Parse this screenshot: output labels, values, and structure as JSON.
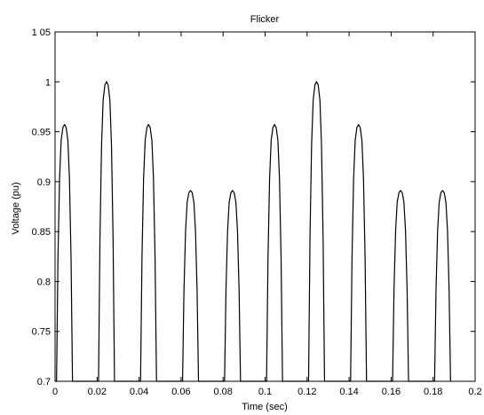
{
  "chart_data": {
    "type": "line",
    "title": "Flicker",
    "xlabel": "Time (sec)",
    "ylabel": "Voltage (pu)",
    "xlim": [
      0,
      0.2
    ],
    "ylim": [
      0.7,
      1.05
    ],
    "grid": false,
    "x_ticks": [
      0,
      0.02,
      0.04,
      0.06,
      0.08,
      0.1,
      0.12,
      0.14,
      0.16,
      0.18,
      0.2
    ],
    "x_tick_labels": [
      "0",
      "0.02",
      "0.04",
      "0.06",
      "0.08",
      "0.1",
      "0.12",
      "0.14",
      "0.16",
      "0.18",
      "0.2"
    ],
    "y_ticks": [
      0.7,
      0.75,
      0.8,
      0.85,
      0.9,
      0.95,
      1,
      1.05
    ],
    "y_tick_labels": [
      "0.7",
      "0.75",
      "0.8",
      "0.85",
      "0.9",
      "0.95",
      "1",
      "1 05"
    ],
    "series": [
      {
        "color": "#000000",
        "peaks": [
          {
            "t": 0.0045,
            "v": 0.957
          },
          {
            "t": 0.0245,
            "v": 1.0
          },
          {
            "t": 0.0445,
            "v": 0.957
          },
          {
            "t": 0.0645,
            "v": 0.891
          },
          {
            "t": 0.0845,
            "v": 0.891
          },
          {
            "t": 0.1045,
            "v": 0.957
          },
          {
            "t": 0.1245,
            "v": 1.0
          },
          {
            "t": 0.1445,
            "v": 0.957
          },
          {
            "t": 0.1645,
            "v": 0.891
          },
          {
            "t": 0.1845,
            "v": 0.891
          }
        ]
      }
    ]
  }
}
